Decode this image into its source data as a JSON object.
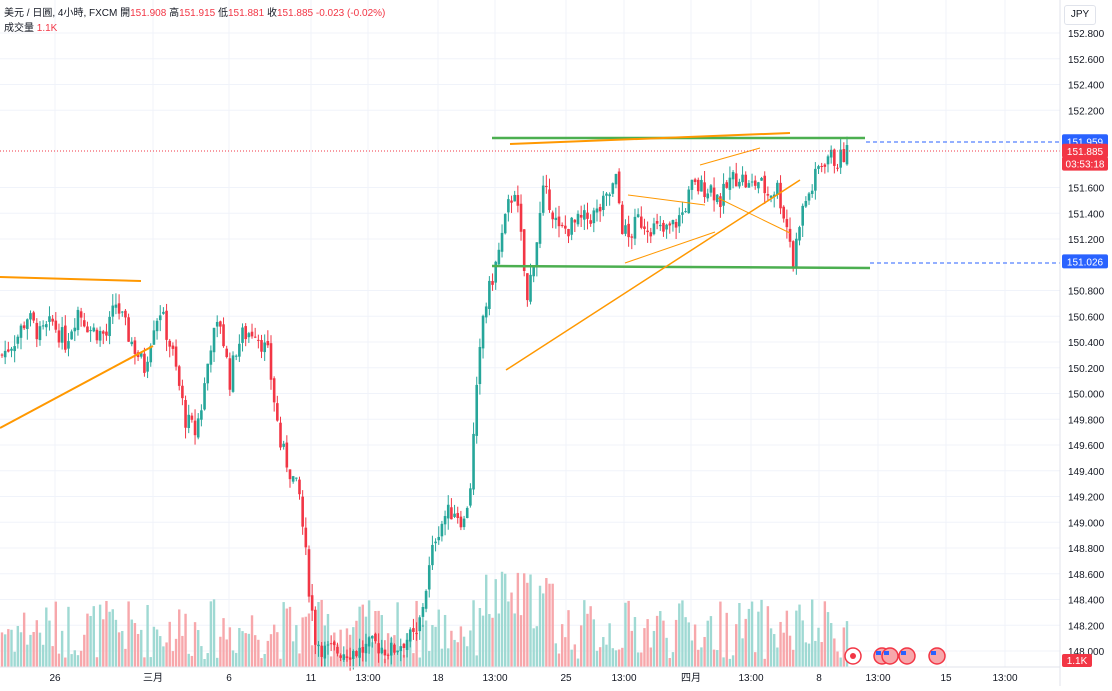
{
  "header": {
    "symbol": "美元 / 日圓, 4小時, FXCM",
    "open_label": "開",
    "open": "151.908",
    "high_label": "高",
    "high": "151.915",
    "low_label": "低",
    "low": "151.881",
    "close_label": "收",
    "close": "151.885",
    "change": "-0.023 (-0.02%)",
    "volume_label": "成交量",
    "volume": "1.1K"
  },
  "currency_button": "JPY",
  "price_scale": {
    "ticks": [
      "152.800",
      "152.600",
      "152.400",
      "152.200",
      "151.600",
      "151.400",
      "151.200",
      "150.800",
      "150.600",
      "150.400",
      "150.200",
      "150.000",
      "149.800",
      "149.600",
      "149.400",
      "149.200",
      "149.000",
      "148.800",
      "148.600",
      "148.400",
      "148.200",
      "148.000"
    ],
    "level_labels": [
      {
        "text": "151.959",
        "color": "#2962ff",
        "value": 151.959
      },
      {
        "text": "151.885",
        "color": "#f23645",
        "value": 151.885
      },
      {
        "text": "03:53:18",
        "color": "#f23645",
        "value": 151.785
      },
      {
        "text": "151.026",
        "color": "#2962ff",
        "value": 151.026
      }
    ],
    "volume_label": "1.1K"
  },
  "time_axis": {
    "labels": [
      "26",
      "三月",
      "6",
      "11",
      "13:00",
      "18",
      "13:00",
      "25",
      "13:00",
      "四月",
      "13:00",
      "8",
      "13:00",
      "15",
      "13:00"
    ]
  },
  "colors": {
    "up": "#26a69a",
    "down": "#f23645",
    "vol_up": "#9fd9d3",
    "vol_down": "#f7a7ab",
    "support_resistance": "#4caf50",
    "trendline": "#ff9800",
    "horizontal_level": "#2962ff",
    "grid": "#f0f3fa"
  },
  "chart_data": {
    "type": "candlestick",
    "interval": "4 hours",
    "ylim": [
      148.0,
      152.8
    ],
    "close_path": [
      [
        0,
        150.3
      ],
      [
        5,
        150.45
      ],
      [
        8,
        150.6
      ],
      [
        12,
        150.45
      ],
      [
        16,
        150.55
      ],
      [
        20,
        150.4
      ],
      [
        24,
        150.65
      ],
      [
        28,
        150.5
      ],
      [
        33,
        150.45
      ],
      [
        36,
        150.7
      ],
      [
        40,
        150.45
      ],
      [
        45,
        150.2
      ],
      [
        48,
        150.55
      ],
      [
        50,
        150.65
      ],
      [
        54,
        150.3
      ],
      [
        58,
        149.8
      ],
      [
        61,
        149.7
      ],
      [
        63,
        149.9
      ],
      [
        66,
        150.4
      ],
      [
        69,
        150.55
      ],
      [
        72,
        150.1
      ],
      [
        74,
        150.35
      ],
      [
        76,
        150.45
      ],
      [
        80,
        150.5
      ],
      [
        84,
        150.3
      ],
      [
        88,
        149.6
      ],
      [
        91,
        149.4
      ],
      [
        94,
        149.2
      ],
      [
        97,
        148.5
      ],
      [
        99,
        148.1
      ],
      [
        102,
        148.0
      ],
      [
        107,
        148.0
      ],
      [
        113,
        148.0
      ],
      [
        118,
        148.05
      ],
      [
        123,
        148.0
      ],
      [
        128,
        148.1
      ],
      [
        131,
        148.1
      ],
      [
        134,
        148.5
      ],
      [
        137,
        148.9
      ],
      [
        140,
        149.05
      ],
      [
        143,
        149.1
      ],
      [
        146,
        149.0
      ],
      [
        148,
        149.3
      ],
      [
        150,
        150.0
      ],
      [
        152,
        150.6
      ],
      [
        154,
        150.8
      ],
      [
        157,
        151.1
      ],
      [
        160,
        151.45
      ],
      [
        162,
        151.6
      ],
      [
        164,
        151.2
      ],
      [
        166,
        150.7
      ],
      [
        167,
        150.9
      ],
      [
        169,
        151.2
      ],
      [
        171,
        151.55
      ],
      [
        173,
        151.5
      ],
      [
        176,
        151.25
      ],
      [
        180,
        151.3
      ],
      [
        184,
        151.35
      ],
      [
        188,
        151.4
      ],
      [
        191,
        151.5
      ],
      [
        194,
        151.65
      ],
      [
        196,
        151.3
      ],
      [
        198,
        151.2
      ],
      [
        201,
        151.35
      ],
      [
        205,
        151.3
      ],
      [
        209,
        151.25
      ],
      [
        212,
        151.3
      ],
      [
        215,
        151.4
      ],
      [
        218,
        151.6
      ],
      [
        221,
        151.6
      ],
      [
        224,
        151.6
      ],
      [
        227,
        151.5
      ],
      [
        230,
        151.65
      ],
      [
        233,
        151.7
      ],
      [
        236,
        151.6
      ],
      [
        239,
        151.65
      ],
      [
        242,
        151.55
      ],
      [
        245,
        151.6
      ],
      [
        247,
        151.4
      ],
      [
        249,
        151.2
      ],
      [
        250,
        151.0
      ],
      [
        252,
        151.35
      ],
      [
        254,
        151.5
      ],
      [
        256,
        151.6
      ],
      [
        258,
        151.75
      ],
      [
        261,
        151.85
      ],
      [
        264,
        151.8
      ],
      [
        267,
        151.88
      ]
    ],
    "close_path_units": [
      "bar index (4h bars)",
      "price (JPY)"
    ],
    "volume_max": "1.1K"
  }
}
